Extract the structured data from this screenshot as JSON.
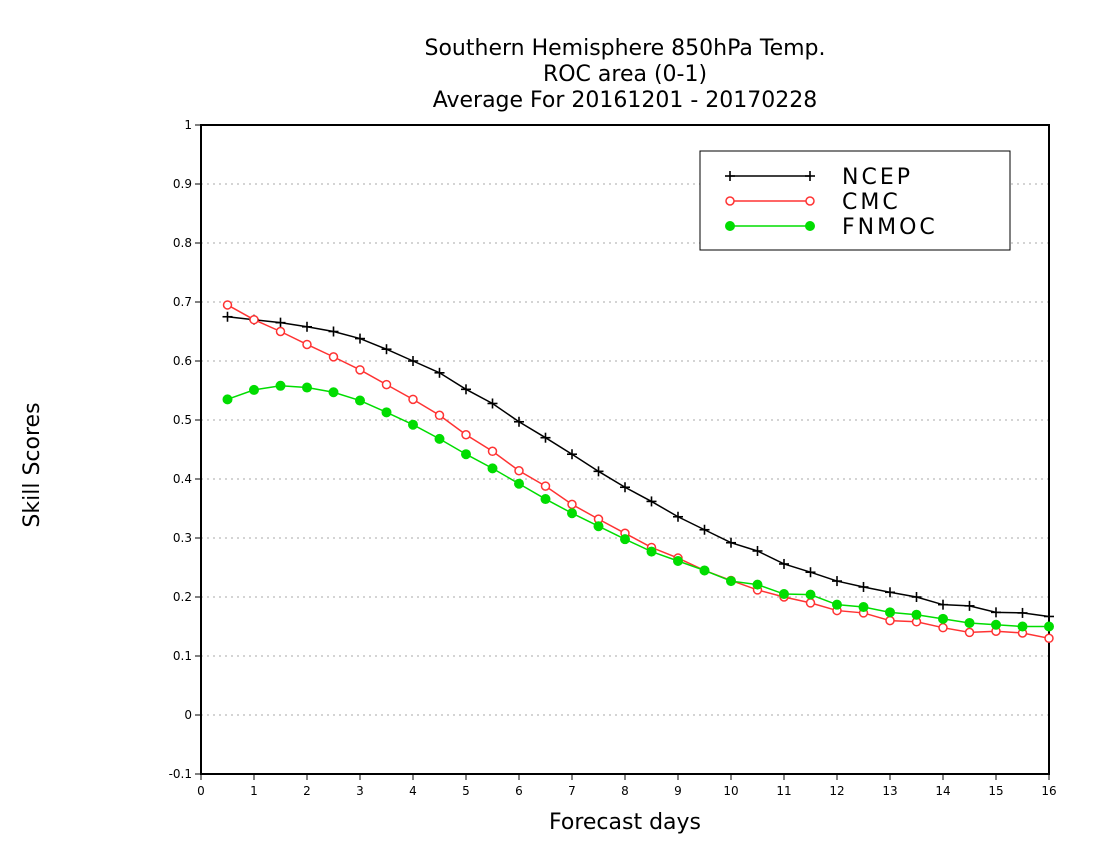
{
  "chart_data": {
    "type": "line",
    "title": [
      "Southern Hemisphere 850hPa Temp.",
      "ROC area (0-1)",
      "Average For 20161201 - 20170228"
    ],
    "xlabel": "Forecast days",
    "ylabel": "Skill Scores",
    "xlim": [
      0,
      16
    ],
    "ylim": [
      -0.1,
      1
    ],
    "xticks": [
      "0",
      "1",
      "2",
      "3",
      "4",
      "5",
      "6",
      "7",
      "8",
      "9",
      "10",
      "11",
      "12",
      "13",
      "14",
      "15",
      "16"
    ],
    "yticks": [
      "-0.1",
      "0",
      "0.1",
      "0.2",
      "0.3",
      "0.4",
      "0.5",
      "0.6",
      "0.7",
      "0.8",
      "0.9",
      "1"
    ],
    "grid": true,
    "legend_position": "top-right",
    "x": [
      0.5,
      1,
      1.5,
      2,
      2.5,
      3,
      3.5,
      4,
      4.5,
      5,
      5.5,
      6,
      6.5,
      7,
      7.5,
      8,
      8.5,
      9,
      9.5,
      10,
      10.5,
      11,
      11.5,
      12,
      12.5,
      13,
      13.5,
      14,
      14.5,
      15,
      15.5,
      16
    ],
    "series": [
      {
        "name": "NCEP",
        "color": "#000000",
        "marker": "plus",
        "values": [
          0.675,
          0.67,
          0.665,
          0.658,
          0.65,
          0.638,
          0.62,
          0.6,
          0.58,
          0.552,
          0.528,
          0.497,
          0.47,
          0.442,
          0.413,
          0.386,
          0.362,
          0.336,
          0.314,
          0.292,
          0.278,
          0.256,
          0.242,
          0.227,
          0.217,
          0.208,
          0.2,
          0.187,
          0.185,
          0.174,
          0.173,
          0.167
        ]
      },
      {
        "name": "CMC",
        "color": "#ff3333",
        "marker": "open-circle",
        "values": [
          0.695,
          0.67,
          0.65,
          0.628,
          0.607,
          0.585,
          0.56,
          0.535,
          0.508,
          0.475,
          0.447,
          0.414,
          0.388,
          0.357,
          0.332,
          0.308,
          0.284,
          0.266,
          0.245,
          0.228,
          0.212,
          0.2,
          0.19,
          0.177,
          0.173,
          0.16,
          0.158,
          0.148,
          0.14,
          0.142,
          0.139,
          0.13
        ]
      },
      {
        "name": "FNMOC",
        "color": "#00dd00",
        "marker": "filled-circle",
        "values": [
          0.535,
          0.551,
          0.558,
          0.555,
          0.547,
          0.533,
          0.513,
          0.492,
          0.468,
          0.442,
          0.418,
          0.392,
          0.366,
          0.342,
          0.32,
          0.298,
          0.277,
          0.261,
          0.245,
          0.227,
          0.221,
          0.205,
          0.204,
          0.187,
          0.183,
          0.174,
          0.17,
          0.163,
          0.156,
          0.153,
          0.15,
          0.15
        ]
      }
    ]
  }
}
